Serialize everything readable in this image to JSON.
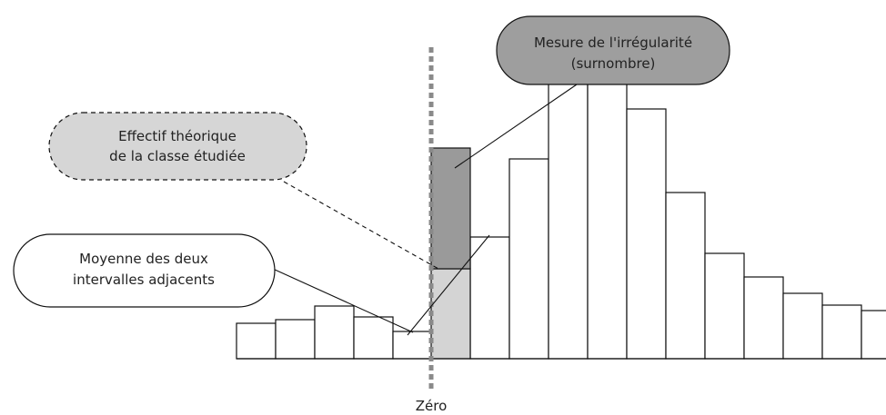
{
  "diagram": {
    "callouts": {
      "irregularity": {
        "line1": "Mesure de l'irrégularité",
        "line2": "(surnombre)"
      },
      "theoretical": {
        "line1": "Effectif théorique",
        "line2": "de la classe étudiée"
      },
      "mean": {
        "line1": "Moyenne des deux",
        "line2": "intervalles adjacents"
      }
    },
    "zero_label": "Zéro",
    "colors": {
      "bar_fill": "#ffffff",
      "theoretical_fill": "#d4d4d4",
      "excess_fill": "#9a9a9a",
      "irregularity_box": "#9e9e9e",
      "theoretical_box": "#d6d6d6",
      "zero_line": "#8a8a8a"
    }
  },
  "chart_data": {
    "type": "bar",
    "note_values_relative": true,
    "values_before_zero": [
      39,
      43,
      58,
      46,
      30
    ],
    "studied_class": {
      "theoretical": 98,
      "total": 232
    },
    "values_after_zero": [
      134,
      220,
      305,
      305,
      275,
      183,
      116,
      90,
      72,
      59,
      53
    ]
  }
}
